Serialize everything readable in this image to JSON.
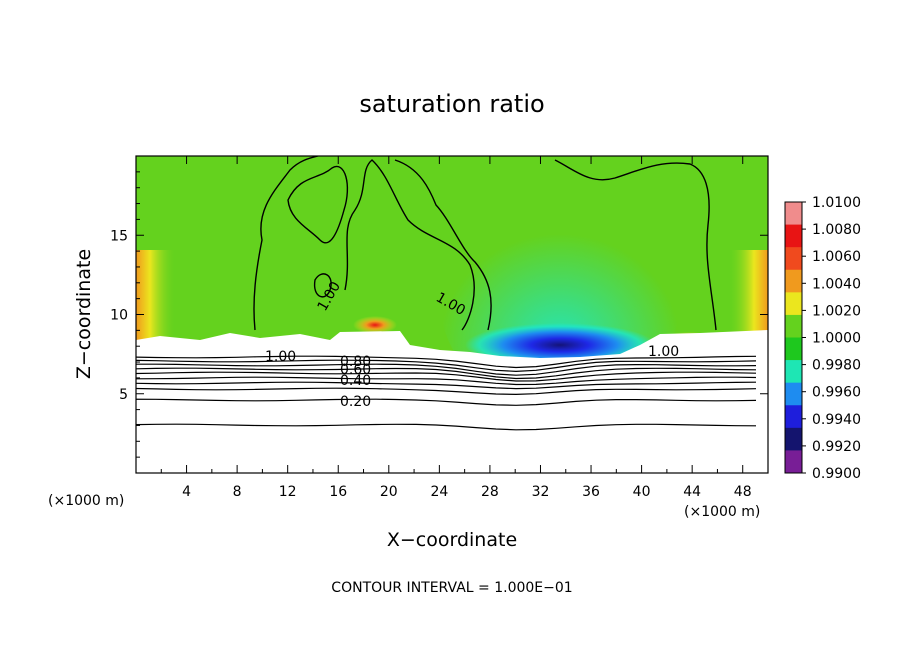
{
  "chart_data": {
    "type": "heatmap",
    "title": "saturation ratio",
    "xlabel": "X−coordinate",
    "ylabel": "Z−coordinate",
    "x_unit_left": "(×1000 m)",
    "x_unit_right": "(×1000 m)",
    "xlim": [
      0,
      50
    ],
    "ylim": [
      0,
      20
    ],
    "x_ticks": [
      4,
      8,
      12,
      16,
      20,
      24,
      28,
      32,
      36,
      40,
      44,
      48
    ],
    "y_ticks": [
      5,
      10,
      15
    ],
    "colorbar": {
      "levels": [
        "1.0100",
        "1.0080",
        "1.0060",
        "1.0040",
        "1.0020",
        "1.0000",
        "0.9980",
        "0.9960",
        "0.9940",
        "0.9920",
        "0.9900"
      ],
      "colors": [
        "#f08c8c",
        "#e81414",
        "#f04a1e",
        "#f09a1e",
        "#ebe61e",
        "#64d21e",
        "#1ec81e",
        "#1ee6b4",
        "#1e8cf0",
        "#1e1edc",
        "#14146e",
        "#781e96"
      ]
    },
    "contour_labels": [
      "1.00",
      "1.00",
      "1.00",
      "0.80",
      "0.60",
      "0.40",
      "0.20",
      "1.00"
    ],
    "contour_levels_below_cloud_base": [
      0.1,
      0.2,
      0.3,
      0.4,
      0.5,
      0.6,
      0.7,
      0.8,
      0.9,
      1.0
    ],
    "contour_interval_text": "CONTOUR INTERVAL = 1.000E−01"
  }
}
